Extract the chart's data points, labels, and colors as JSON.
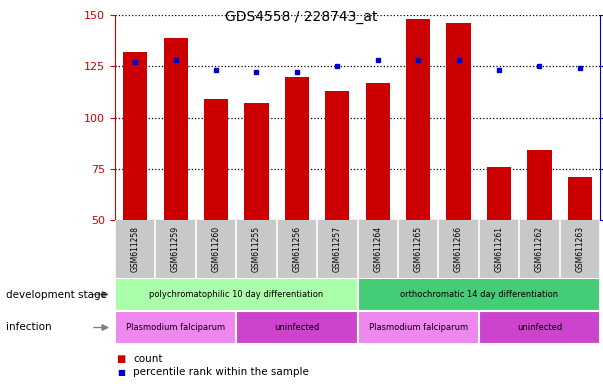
{
  "title": "GDS4558 / 228743_at",
  "samples": [
    "GSM611258",
    "GSM611259",
    "GSM611260",
    "GSM611255",
    "GSM611256",
    "GSM611257",
    "GSM611264",
    "GSM611265",
    "GSM611266",
    "GSM611261",
    "GSM611262",
    "GSM611263"
  ],
  "counts": [
    132,
    139,
    109,
    107,
    120,
    113,
    117,
    148,
    146,
    76,
    84,
    71
  ],
  "percentiles": [
    77,
    78,
    73,
    72,
    72,
    75,
    78,
    78,
    78,
    73,
    75,
    74
  ],
  "ylim_left": [
    50,
    150
  ],
  "ylim_right": [
    0,
    100
  ],
  "yticks_left": [
    50,
    75,
    100,
    125,
    150
  ],
  "yticks_right": [
    0,
    25,
    50,
    75,
    100
  ],
  "bar_color": "#cc0000",
  "dot_color": "#0000cc",
  "tick_area_bg": "#c8c8c8",
  "dev_stage_label": "development stage",
  "infection_label": "infection",
  "dev_stage_groups": [
    {
      "label": "polychromatophilic 10 day differentiation",
      "start": 0,
      "end": 6,
      "color": "#aaffaa"
    },
    {
      "label": "orthochromatic 14 day differentiation",
      "start": 6,
      "end": 12,
      "color": "#44cc77"
    }
  ],
  "infection_groups": [
    {
      "label": "Plasmodium falciparum",
      "start": 0,
      "end": 3,
      "color": "#ee88ee"
    },
    {
      "label": "uninfected",
      "start": 3,
      "end": 6,
      "color": "#cc44cc"
    },
    {
      "label": "Plasmodium falciparum",
      "start": 6,
      "end": 9,
      "color": "#ee88ee"
    },
    {
      "label": "uninfected",
      "start": 9,
      "end": 12,
      "color": "#cc44cc"
    }
  ],
  "legend_count_label": "count",
  "legend_dot_label": "percentile rank within the sample"
}
